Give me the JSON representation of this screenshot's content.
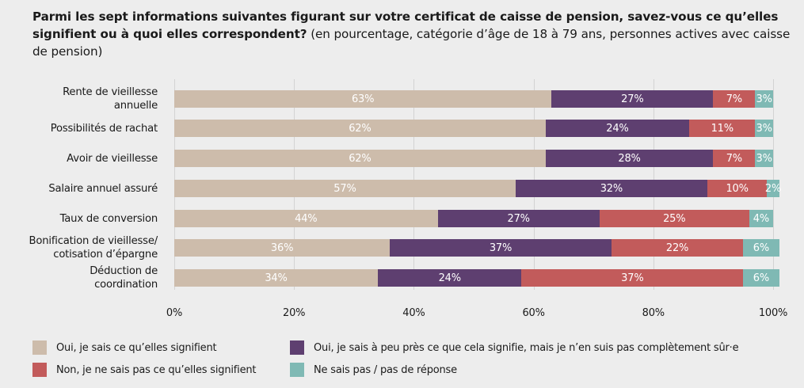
{
  "title": {
    "bold": "Parmi les sept informations suivantes figurant sur votre certificat de caisse de pension, savez-vous ce qu’elles signifient ou à quoi elles correspondent?",
    "normal": " (en pourcentage, catégorie d’âge de 18 à 79 ans, personnes actives avec caisse de pension)"
  },
  "chart_data": {
    "type": "bar",
    "orientation": "horizontal",
    "stacked": true,
    "title": "Parmi les sept informations suivantes figurant sur votre certificat de caisse de pension, savez-vous ce qu’elles signifient ou à quoi elles correspondent? (en pourcentage, catégorie d’âge de 18 à 79 ans, personnes actives avec caisse de pension)",
    "xlabel": "",
    "ylabel": "",
    "xlim": [
      0,
      100
    ],
    "x_ticks": [
      "0%",
      "20%",
      "40%",
      "60%",
      "80%",
      "100%"
    ],
    "grid": true,
    "legend_position": "bottom",
    "categories": [
      [
        "Rente de vieillesse",
        "annuelle"
      ],
      [
        "Possibilités de rachat"
      ],
      [
        "Avoir de vieillesse"
      ],
      [
        "Salaire annuel assuré"
      ],
      [
        "Taux de conversion"
      ],
      [
        "Bonification de vieillesse/",
        "cotisation d’épargne"
      ],
      [
        "Déduction de",
        "coordination"
      ]
    ],
    "series": [
      {
        "name": "Oui, je sais ce qu’elles signifient",
        "color": "#cdbcab",
        "values": [
          63,
          62,
          62,
          57,
          44,
          36,
          34
        ]
      },
      {
        "name": "Oui, je sais à peu près ce que cela signifie, mais je n’en suis pas complètement sûr·e",
        "color": "#5e3f70",
        "values": [
          27,
          24,
          28,
          32,
          27,
          37,
          24
        ]
      },
      {
        "name": "Non, je ne sais pas ce qu’elles signifient",
        "color": "#c25b5b",
        "values": [
          7,
          11,
          7,
          10,
          25,
          22,
          37
        ]
      },
      {
        "name": "Ne sais pas / pas de réponse",
        "color": "#7fb9b4",
        "values": [
          3,
          3,
          3,
          2,
          4,
          6,
          6
        ]
      }
    ]
  }
}
